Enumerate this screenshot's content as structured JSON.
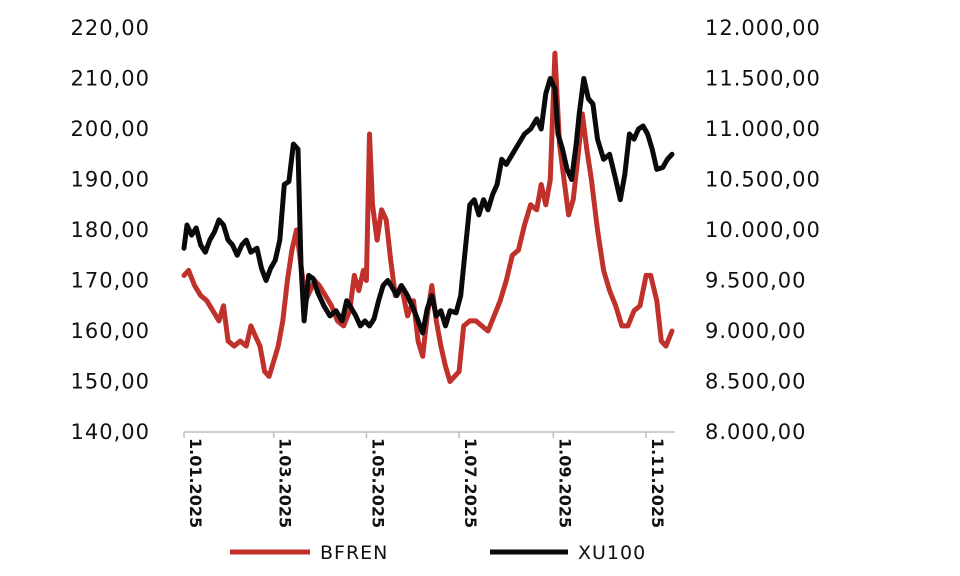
{
  "chart_data": {
    "type": "line",
    "title": "",
    "xlabel": "",
    "ylabel_left": "",
    "ylabel_right": "",
    "x_range": [
      "2025-01-01",
      "2025-11-20"
    ],
    "y_left_ticks": [
      "220,00",
      "210,00",
      "200,00",
      "190,00",
      "180,00",
      "170,00",
      "160,00",
      "150,00",
      "140,00"
    ],
    "y_left_range": [
      140,
      220
    ],
    "y_right_ticks": [
      "12.000,00",
      "11.500,00",
      "11.000,00",
      "10.500,00",
      "10.000,00",
      "9.500,00",
      "9.000,00",
      "8.500,00",
      "8.000,00"
    ],
    "y_right_range": [
      8000,
      12000
    ],
    "x_ticks": [
      {
        "date": "2025-01-01",
        "label": "1.01.2025"
      },
      {
        "date": "2025-03-01",
        "label": "1.03.2025"
      },
      {
        "date": "2025-05-01",
        "label": "1.05.2025"
      },
      {
        "date": "2025-07-01",
        "label": "1.07.2025"
      },
      {
        "date": "2025-09-01",
        "label": "1.09.2025"
      },
      {
        "date": "2025-11-01",
        "label": "1.11.2025"
      }
    ],
    "legend_position": "bottom",
    "grid": false,
    "series": [
      {
        "name": "BFREN",
        "axis": "left",
        "color": "#c0312b",
        "points": [
          [
            "2025-01-01",
            171
          ],
          [
            "2025-01-04",
            172
          ],
          [
            "2025-01-08",
            169
          ],
          [
            "2025-01-12",
            167
          ],
          [
            "2025-01-16",
            166
          ],
          [
            "2025-01-20",
            164
          ],
          [
            "2025-01-24",
            162
          ],
          [
            "2025-01-27",
            165
          ],
          [
            "2025-01-30",
            158
          ],
          [
            "2025-02-03",
            157
          ],
          [
            "2025-02-07",
            158
          ],
          [
            "2025-02-11",
            157
          ],
          [
            "2025-02-14",
            161
          ],
          [
            "2025-02-17",
            159
          ],
          [
            "2025-02-20",
            157
          ],
          [
            "2025-02-23",
            152
          ],
          [
            "2025-02-26",
            151
          ],
          [
            "2025-03-01",
            154
          ],
          [
            "2025-03-04",
            157
          ],
          [
            "2025-03-07",
            162
          ],
          [
            "2025-03-10",
            170
          ],
          [
            "2025-03-13",
            176
          ],
          [
            "2025-03-16",
            180
          ],
          [
            "2025-03-19",
            173
          ],
          [
            "2025-03-22",
            166
          ],
          [
            "2025-03-25",
            168
          ],
          [
            "2025-03-28",
            170
          ],
          [
            "2025-03-31",
            169
          ],
          [
            "2025-04-04",
            167
          ],
          [
            "2025-04-08",
            165
          ],
          [
            "2025-04-12",
            162
          ],
          [
            "2025-04-16",
            161
          ],
          [
            "2025-04-20",
            164
          ],
          [
            "2025-04-23",
            171
          ],
          [
            "2025-04-26",
            168
          ],
          [
            "2025-04-29",
            172
          ],
          [
            "2025-05-01",
            170
          ],
          [
            "2025-05-03",
            199
          ],
          [
            "2025-05-05",
            185
          ],
          [
            "2025-05-08",
            178
          ],
          [
            "2025-05-11",
            184
          ],
          [
            "2025-05-14",
            182
          ],
          [
            "2025-05-17",
            174
          ],
          [
            "2025-05-20",
            167
          ],
          [
            "2025-05-24",
            169
          ],
          [
            "2025-05-28",
            163
          ],
          [
            "2025-06-01",
            166
          ],
          [
            "2025-06-04",
            158
          ],
          [
            "2025-06-07",
            155
          ],
          [
            "2025-06-10",
            163
          ],
          [
            "2025-06-13",
            169
          ],
          [
            "2025-06-16",
            162
          ],
          [
            "2025-06-19",
            157
          ],
          [
            "2025-06-22",
            153
          ],
          [
            "2025-06-25",
            150
          ],
          [
            "2025-06-28",
            151
          ],
          [
            "2025-07-01",
            152
          ],
          [
            "2025-07-04",
            161
          ],
          [
            "2025-07-08",
            162
          ],
          [
            "2025-07-12",
            162
          ],
          [
            "2025-07-16",
            161
          ],
          [
            "2025-07-20",
            160
          ],
          [
            "2025-07-24",
            163
          ],
          [
            "2025-07-28",
            166
          ],
          [
            "2025-08-01",
            170
          ],
          [
            "2025-08-05",
            175
          ],
          [
            "2025-08-09",
            176
          ],
          [
            "2025-08-13",
            181
          ],
          [
            "2025-08-17",
            185
          ],
          [
            "2025-08-21",
            184
          ],
          [
            "2025-08-24",
            189
          ],
          [
            "2025-08-27",
            185
          ],
          [
            "2025-08-30",
            190
          ],
          [
            "2025-09-02",
            215
          ],
          [
            "2025-09-05",
            197
          ],
          [
            "2025-09-08",
            190
          ],
          [
            "2025-09-11",
            183
          ],
          [
            "2025-09-14",
            186
          ],
          [
            "2025-09-17",
            194
          ],
          [
            "2025-09-20",
            203
          ],
          [
            "2025-09-23",
            196
          ],
          [
            "2025-09-26",
            190
          ],
          [
            "2025-09-30",
            180
          ],
          [
            "2025-10-04",
            172
          ],
          [
            "2025-10-08",
            168
          ],
          [
            "2025-10-12",
            165
          ],
          [
            "2025-10-16",
            161
          ],
          [
            "2025-10-20",
            161
          ],
          [
            "2025-10-24",
            164
          ],
          [
            "2025-10-28",
            165
          ],
          [
            "2025-11-01",
            171
          ],
          [
            "2025-11-04",
            171
          ],
          [
            "2025-11-08",
            166
          ],
          [
            "2025-11-11",
            158
          ],
          [
            "2025-11-14",
            157
          ],
          [
            "2025-11-18",
            160
          ]
        ]
      },
      {
        "name": "XU100",
        "axis": "right",
        "color": "#0a0a0a",
        "points": [
          [
            "2025-01-01",
            9820
          ],
          [
            "2025-01-03",
            10050
          ],
          [
            "2025-01-06",
            9950
          ],
          [
            "2025-01-09",
            10020
          ],
          [
            "2025-01-12",
            9850
          ],
          [
            "2025-01-15",
            9780
          ],
          [
            "2025-01-18",
            9900
          ],
          [
            "2025-01-21",
            9980
          ],
          [
            "2025-01-24",
            10100
          ],
          [
            "2025-01-27",
            10050
          ],
          [
            "2025-01-30",
            9900
          ],
          [
            "2025-02-02",
            9850
          ],
          [
            "2025-02-05",
            9750
          ],
          [
            "2025-02-08",
            9850
          ],
          [
            "2025-02-11",
            9900
          ],
          [
            "2025-02-14",
            9780
          ],
          [
            "2025-02-18",
            9820
          ],
          [
            "2025-02-21",
            9620
          ],
          [
            "2025-02-24",
            9500
          ],
          [
            "2025-02-27",
            9620
          ],
          [
            "2025-03-02",
            9700
          ],
          [
            "2025-03-05",
            9900
          ],
          [
            "2025-03-08",
            10450
          ],
          [
            "2025-03-11",
            10480
          ],
          [
            "2025-03-14",
            10850
          ],
          [
            "2025-03-17",
            10800
          ],
          [
            "2025-03-19",
            9650
          ],
          [
            "2025-03-21",
            9100
          ],
          [
            "2025-03-24",
            9550
          ],
          [
            "2025-03-27",
            9520
          ],
          [
            "2025-03-30",
            9380
          ],
          [
            "2025-04-03",
            9250
          ],
          [
            "2025-04-07",
            9150
          ],
          [
            "2025-04-11",
            9200
          ],
          [
            "2025-04-15",
            9100
          ],
          [
            "2025-04-18",
            9300
          ],
          [
            "2025-04-21",
            9230
          ],
          [
            "2025-04-24",
            9150
          ],
          [
            "2025-04-27",
            9050
          ],
          [
            "2025-04-30",
            9100
          ],
          [
            "2025-05-03",
            9050
          ],
          [
            "2025-05-06",
            9120
          ],
          [
            "2025-05-09",
            9300
          ],
          [
            "2025-05-12",
            9450
          ],
          [
            "2025-05-15",
            9500
          ],
          [
            "2025-05-18",
            9430
          ],
          [
            "2025-05-21",
            9350
          ],
          [
            "2025-05-24",
            9450
          ],
          [
            "2025-05-28",
            9350
          ],
          [
            "2025-06-01",
            9220
          ],
          [
            "2025-06-04",
            9100
          ],
          [
            "2025-06-07",
            8980
          ],
          [
            "2025-06-10",
            9220
          ],
          [
            "2025-06-13",
            9350
          ],
          [
            "2025-06-16",
            9150
          ],
          [
            "2025-06-19",
            9200
          ],
          [
            "2025-06-22",
            9050
          ],
          [
            "2025-06-25",
            9200
          ],
          [
            "2025-06-29",
            9180
          ],
          [
            "2025-07-02",
            9350
          ],
          [
            "2025-07-05",
            9800
          ],
          [
            "2025-07-08",
            10250
          ],
          [
            "2025-07-11",
            10300
          ],
          [
            "2025-07-14",
            10150
          ],
          [
            "2025-07-17",
            10300
          ],
          [
            "2025-07-20",
            10200
          ],
          [
            "2025-07-23",
            10350
          ],
          [
            "2025-07-26",
            10450
          ],
          [
            "2025-07-29",
            10700
          ],
          [
            "2025-08-01",
            10650
          ],
          [
            "2025-08-05",
            10750
          ],
          [
            "2025-08-09",
            10850
          ],
          [
            "2025-08-13",
            10950
          ],
          [
            "2025-08-17",
            11000
          ],
          [
            "2025-08-21",
            11100
          ],
          [
            "2025-08-24",
            11000
          ],
          [
            "2025-08-27",
            11350
          ],
          [
            "2025-08-30",
            11500
          ],
          [
            "2025-09-02",
            11400
          ],
          [
            "2025-09-04",
            10950
          ],
          [
            "2025-09-07",
            10800
          ],
          [
            "2025-09-10",
            10600
          ],
          [
            "2025-09-13",
            10500
          ],
          [
            "2025-09-16",
            10850
          ],
          [
            "2025-09-18",
            11150
          ],
          [
            "2025-09-21",
            11500
          ],
          [
            "2025-09-24",
            11300
          ],
          [
            "2025-09-27",
            11250
          ],
          [
            "2025-09-30",
            10900
          ],
          [
            "2025-10-04",
            10700
          ],
          [
            "2025-10-08",
            10750
          ],
          [
            "2025-10-12",
            10500
          ],
          [
            "2025-10-15",
            10300
          ],
          [
            "2025-10-18",
            10550
          ],
          [
            "2025-10-21",
            10950
          ],
          [
            "2025-10-24",
            10900
          ],
          [
            "2025-10-27",
            11000
          ],
          [
            "2025-10-30",
            11030
          ],
          [
            "2025-11-02",
            10950
          ],
          [
            "2025-11-05",
            10800
          ],
          [
            "2025-11-08",
            10600
          ],
          [
            "2025-11-12",
            10620
          ],
          [
            "2025-11-15",
            10700
          ],
          [
            "2025-11-18",
            10750
          ]
        ]
      }
    ]
  }
}
